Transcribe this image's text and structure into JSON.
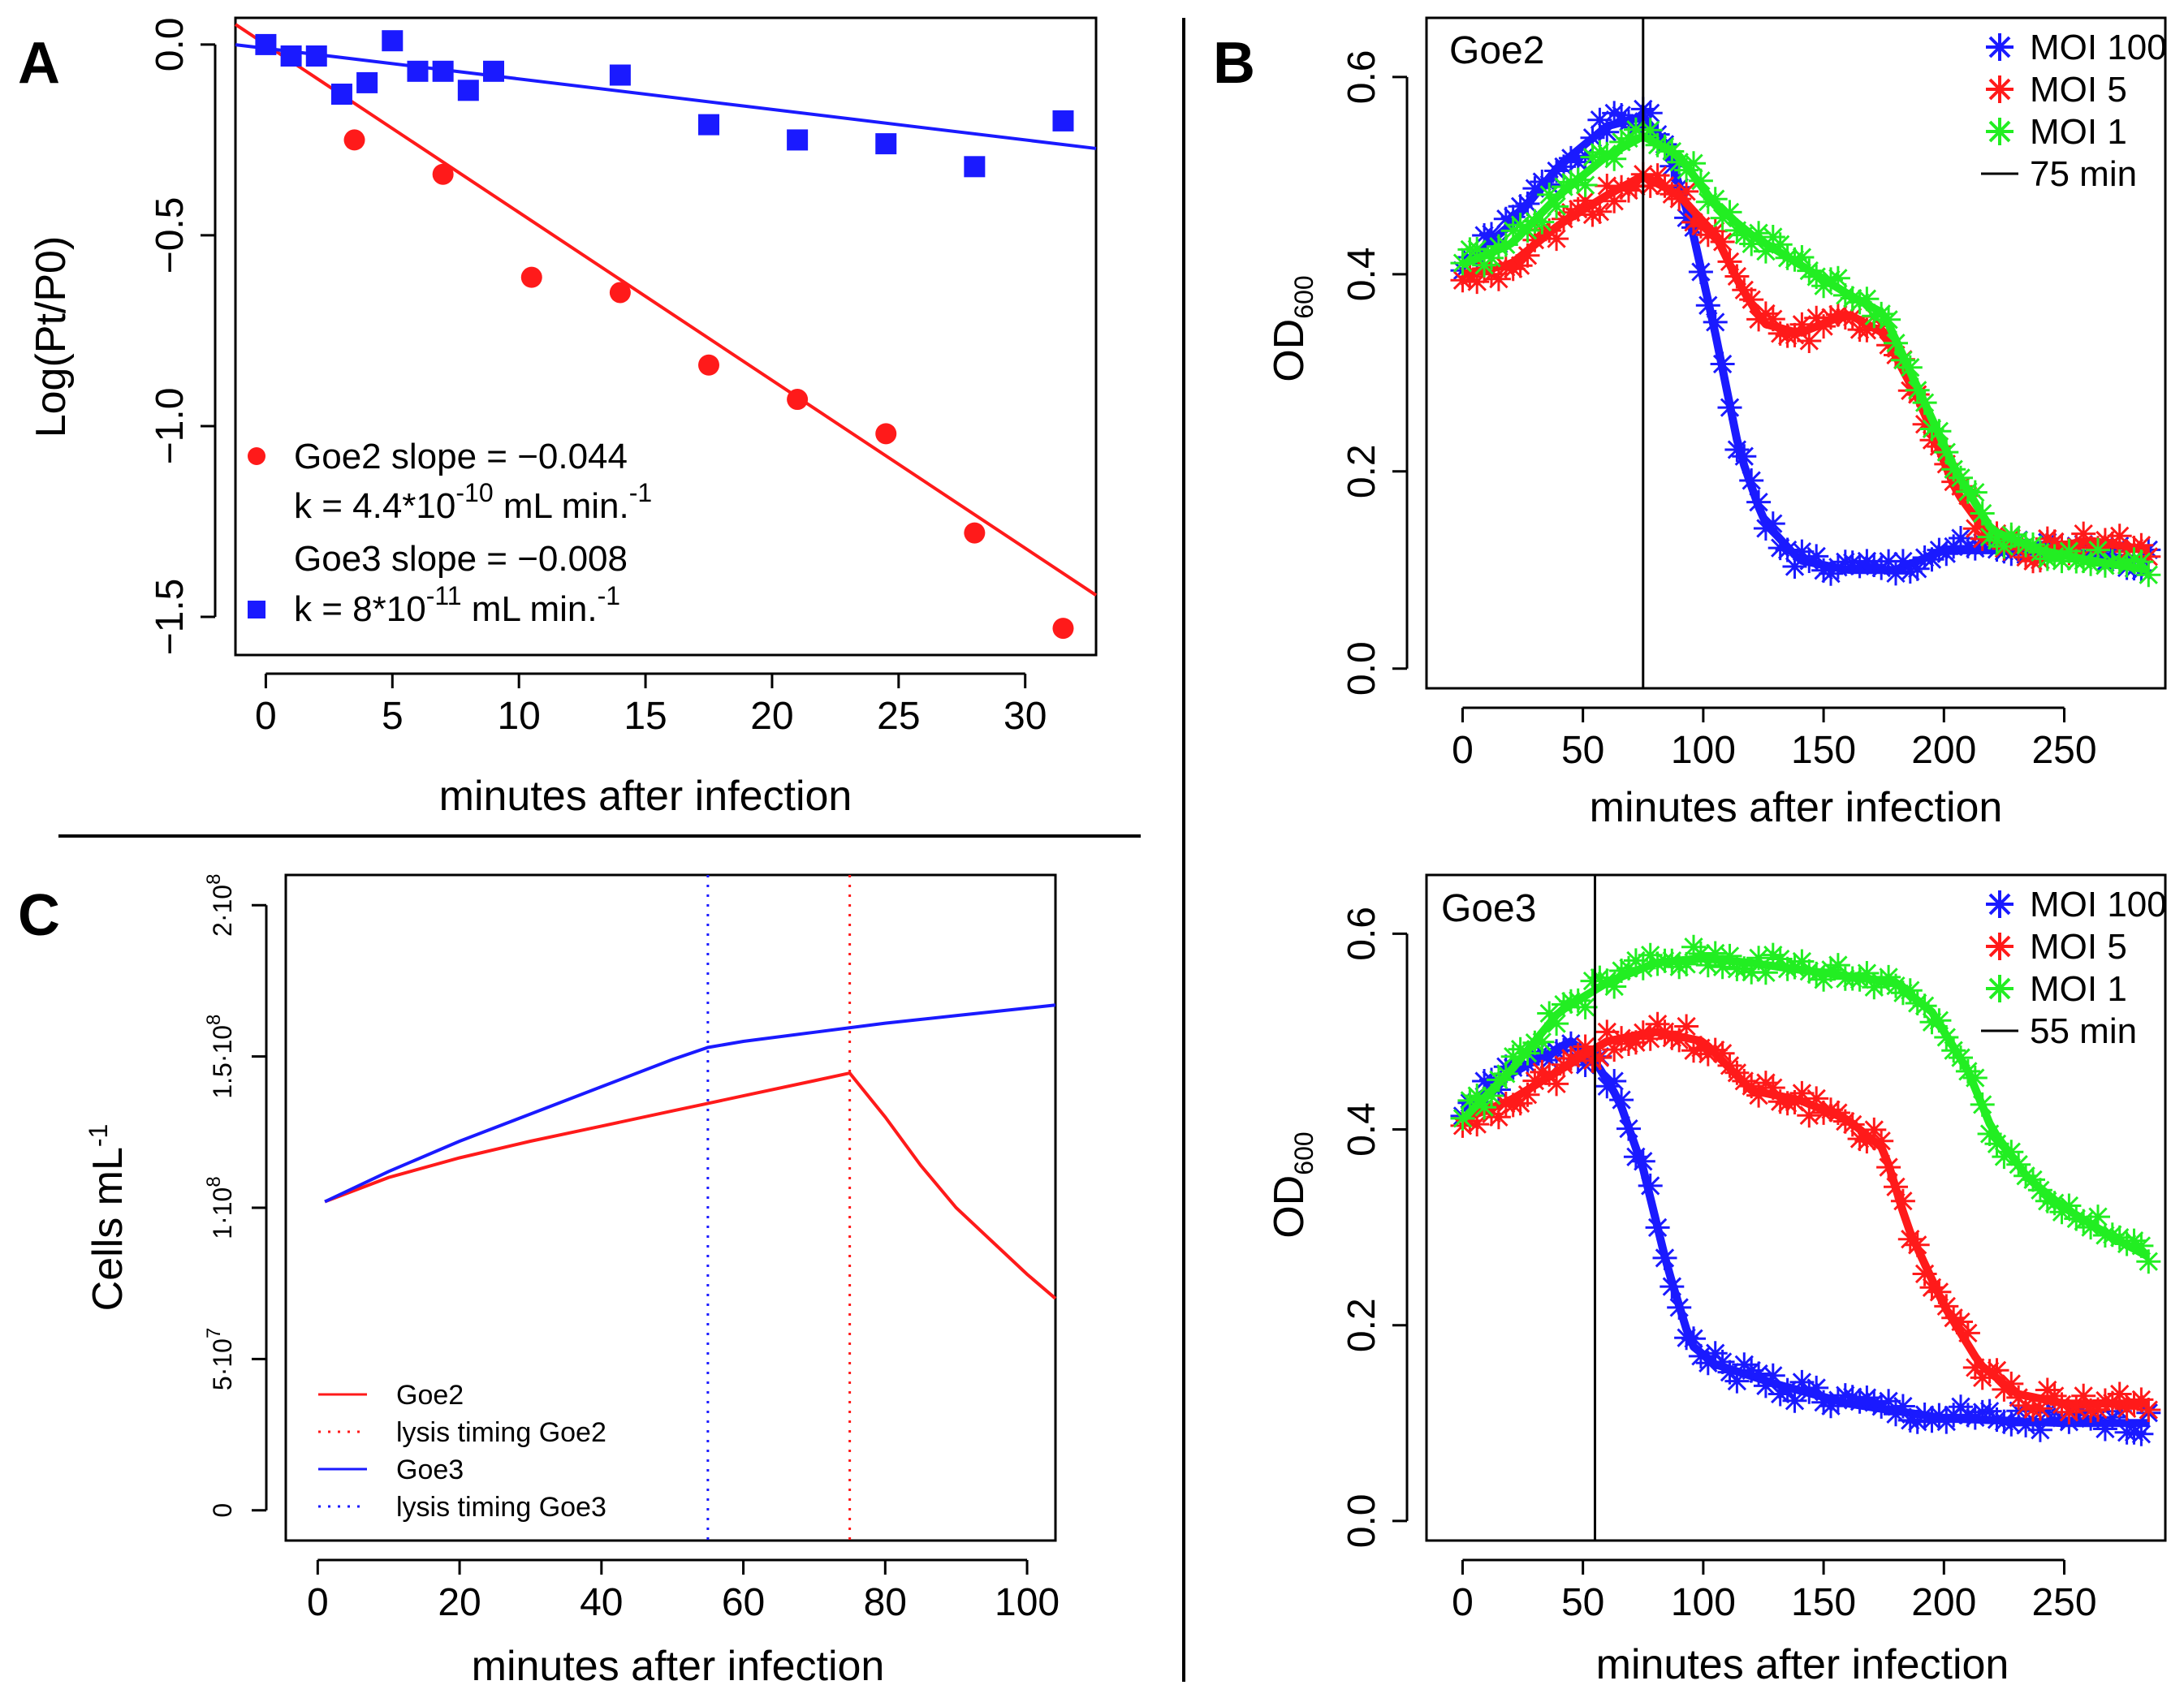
{
  "colors": {
    "red": "#ff1a1a",
    "blue": "#1a1aff",
    "green": "#22ee22",
    "black": "#000000"
  },
  "panels": {
    "A": {
      "letter": "A",
      "ylabel": "Log(Pt/P0)",
      "xlabel": "minutes after infection",
      "legend": {
        "goe2_slope": "Goe2 slope = −0.044",
        "goe2_k_pre": "k = 4.4*10",
        "goe2_k_exp": "-10",
        "goe2_k_post": " mL min.",
        "goe2_k_sup": "-1",
        "goe3_slope": "Goe3 slope = −0.008",
        "goe3_k_pre": "k = 8*10",
        "goe3_k_exp": "-11",
        "goe3_k_post": " mL min.",
        "goe3_k_sup": "-1"
      }
    },
    "B": {
      "letter": "B",
      "ylabel_main": "OD",
      "ylabel_sub": "600",
      "xlabel": "minutes after infection",
      "top_title": "Goe2",
      "bottom_title": "Goe3",
      "legend_top": [
        "MOI 100",
        "MOI 5",
        "MOI 1",
        "75 min"
      ],
      "legend_bottom": [
        "MOI 100",
        "MOI 5",
        "MOI 1",
        "55 min"
      ]
    },
    "C": {
      "letter": "C",
      "ylabel_main": "Cells mL",
      "ylabel_sup": "-1",
      "xlabel": "minutes after infection",
      "legend": [
        "Goe2",
        "lysis timing Goe2",
        "Goe3",
        "lysis timing Goe3"
      ]
    }
  },
  "chart_data": [
    {
      "type": "scatter",
      "panel": "A",
      "xlabel": "minutes after infection",
      "ylabel": "Log(Pt/P0)",
      "xlim": [
        -1.2,
        32.8
      ],
      "ylim": [
        -1.6,
        0.07
      ],
      "xticks": [
        0,
        5,
        10,
        15,
        20,
        25,
        30
      ],
      "yticks": [
        0.0,
        -0.5,
        -1.0,
        -1.5
      ],
      "xtick_labels": [
        "0",
        "5",
        "10",
        "15",
        "20",
        "25",
        "30"
      ],
      "ytick_labels": [
        "0.0",
        "−0.5",
        "−1.0",
        "−1.5"
      ],
      "series": [
        {
          "name": "Goe2",
          "color": "red",
          "marker": "circle",
          "x": [
            3.5,
            7,
            10.5,
            14,
            17.5,
            21,
            24.5,
            28,
            31.5
          ],
          "y": [
            -0.25,
            -0.34,
            -0.61,
            -0.65,
            -0.84,
            -0.93,
            -1.02,
            -1.28,
            -1.53
          ],
          "fit": {
            "intercept": 0.0,
            "slope": -0.044
          }
        },
        {
          "name": "Goe3",
          "color": "blue",
          "marker": "square",
          "x": [
            0,
            1,
            2,
            3,
            4,
            5,
            6,
            7,
            8,
            9,
            14,
            17.5,
            21,
            24.5,
            28,
            31.5
          ],
          "y": [
            0.0,
            -0.03,
            -0.03,
            -0.13,
            -0.1,
            0.01,
            -0.07,
            -0.07,
            -0.12,
            -0.07,
            -0.08,
            -0.21,
            -0.25,
            -0.26,
            -0.32,
            -0.2
          ],
          "fit": {
            "intercept": -0.01,
            "slope": -0.008
          }
        }
      ]
    },
    {
      "type": "line",
      "panel": "B-top",
      "title": "Goe2",
      "xlabel": "minutes after infection",
      "ylabel": "OD600",
      "xlim": [
        -15,
        292
      ],
      "ylim": [
        -0.02,
        0.66
      ],
      "xticks": [
        0,
        50,
        100,
        150,
        200,
        250
      ],
      "yticks": [
        0.0,
        0.2,
        0.4,
        0.6
      ],
      "xtick_labels": [
        "0",
        "50",
        "100",
        "150",
        "200",
        "250"
      ],
      "ytick_labels": [
        "0.0",
        "0.2",
        "0.4",
        "0.6"
      ],
      "vline": {
        "x": 75,
        "label": "75 min"
      },
      "series": [
        {
          "name": "MOI 100",
          "color": "blue",
          "x": [
            0,
            20,
            40,
            60,
            75,
            85,
            95,
            105,
            115,
            125,
            140,
            160,
            180,
            200,
            230,
            260,
            285
          ],
          "y": [
            0.41,
            0.45,
            0.51,
            0.55,
            0.56,
            0.53,
            0.45,
            0.34,
            0.22,
            0.15,
            0.11,
            0.1,
            0.1,
            0.12,
            0.12,
            0.115,
            0.11
          ]
        },
        {
          "name": "MOI 5",
          "color": "red",
          "x": [
            0,
            20,
            40,
            60,
            75,
            90,
            105,
            115,
            125,
            140,
            160,
            175,
            190,
            205,
            220,
            240,
            260,
            285
          ],
          "y": [
            0.4,
            0.41,
            0.45,
            0.48,
            0.5,
            0.48,
            0.44,
            0.39,
            0.35,
            0.34,
            0.36,
            0.34,
            0.27,
            0.18,
            0.13,
            0.12,
            0.13,
            0.12
          ]
        },
        {
          "name": "MOI 1",
          "color": "green",
          "x": [
            0,
            20,
            40,
            60,
            75,
            90,
            105,
            120,
            140,
            160,
            175,
            190,
            205,
            220,
            240,
            260,
            285
          ],
          "y": [
            0.41,
            0.43,
            0.48,
            0.52,
            0.54,
            0.52,
            0.47,
            0.44,
            0.41,
            0.38,
            0.36,
            0.28,
            0.2,
            0.14,
            0.12,
            0.11,
            0.1
          ]
        }
      ]
    },
    {
      "type": "line",
      "panel": "B-bottom",
      "title": "Goe3",
      "xlabel": "minutes after infection",
      "ylabel": "OD600",
      "xlim": [
        -15,
        292
      ],
      "ylim": [
        -0.02,
        0.66
      ],
      "xticks": [
        0,
        50,
        100,
        150,
        200,
        250
      ],
      "yticks": [
        0.0,
        0.2,
        0.4,
        0.6
      ],
      "xtick_labels": [
        "0",
        "50",
        "100",
        "150",
        "200",
        "250"
      ],
      "ytick_labels": [
        "0.0",
        "0.2",
        "0.4",
        "0.6"
      ],
      "vline": {
        "x": 55,
        "label": "55 min"
      },
      "series": [
        {
          "name": "MOI 100",
          "color": "blue",
          "x": [
            0,
            15,
            30,
            45,
            55,
            65,
            75,
            85,
            95,
            105,
            130,
            160,
            200,
            250,
            285
          ],
          "y": [
            0.42,
            0.45,
            0.47,
            0.49,
            0.47,
            0.43,
            0.36,
            0.26,
            0.18,
            0.16,
            0.14,
            0.12,
            0.105,
            0.1,
            0.1
          ]
        },
        {
          "name": "MOI 5",
          "color": "red",
          "x": [
            0,
            20,
            40,
            60,
            80,
            100,
            120,
            140,
            160,
            175,
            185,
            200,
            215,
            230,
            250,
            270,
            285
          ],
          "y": [
            0.41,
            0.43,
            0.46,
            0.49,
            0.5,
            0.49,
            0.44,
            0.43,
            0.41,
            0.38,
            0.3,
            0.22,
            0.16,
            0.13,
            0.12,
            0.12,
            0.12
          ]
        },
        {
          "name": "MOI 1",
          "color": "green",
          "x": [
            0,
            20,
            40,
            60,
            80,
            100,
            120,
            150,
            180,
            195,
            210,
            220,
            235,
            250,
            270,
            285
          ],
          "y": [
            0.41,
            0.46,
            0.52,
            0.55,
            0.57,
            0.575,
            0.57,
            0.56,
            0.55,
            0.52,
            0.46,
            0.4,
            0.35,
            0.32,
            0.29,
            0.27
          ]
        }
      ]
    },
    {
      "type": "line",
      "panel": "C",
      "xlabel": "minutes after infection",
      "ylabel": "Cells mL-1",
      "xlim": [
        -4.5,
        104
      ],
      "ylim": [
        -10000000.0,
        210000000.0
      ],
      "xticks": [
        0,
        20,
        40,
        60,
        80,
        100
      ],
      "xtick_labels": [
        "0",
        "20",
        "40",
        "60",
        "80",
        "100"
      ],
      "yticks": [
        0,
        50000000.0,
        100000000.0,
        150000000.0,
        200000000.0
      ],
      "ytick_labels": [
        {
          "mant": "0",
          "exp": ""
        },
        {
          "mant": "5·10",
          "exp": "7"
        },
        {
          "mant": "1·10",
          "exp": "8"
        },
        {
          "mant": "1.5·10",
          "exp": "8"
        },
        {
          "mant": "2·10",
          "exp": "8"
        }
      ],
      "series": [
        {
          "name": "Goe2",
          "color": "red",
          "style": "solid",
          "x": [
            1,
            10,
            20,
            30,
            40,
            50,
            55,
            60,
            70,
            75,
            80,
            85,
            90,
            95,
            100,
            104
          ],
          "y": [
            102000000.0,
            110000000.0,
            116500000.0,
            122000000.0,
            127000000.0,
            132000000.0,
            134500000.0,
            137000000.0,
            142000000.0,
            144500000.0,
            130000000.0,
            114000000.0,
            100000000.0,
            89000000.0,
            78000000.0,
            70000000.0
          ]
        },
        {
          "name": "Goe3",
          "color": "blue",
          "style": "solid",
          "x": [
            1,
            10,
            20,
            30,
            40,
            50,
            55,
            60,
            70,
            80,
            90,
            100,
            104
          ],
          "y": [
            102000000.0,
            112000000.0,
            122000000.0,
            131000000.0,
            140000000.0,
            149000000.0,
            153000000.0,
            155000000.0,
            158000000.0,
            161000000.0,
            163500000.0,
            166000000.0,
            167000000.0
          ]
        }
      ],
      "vlines": [
        {
          "name": "lysis timing Goe2",
          "x": 75,
          "color": "red",
          "style": "dotted"
        },
        {
          "name": "lysis timing Goe3",
          "x": 55,
          "color": "blue",
          "style": "dotted"
        }
      ]
    }
  ]
}
